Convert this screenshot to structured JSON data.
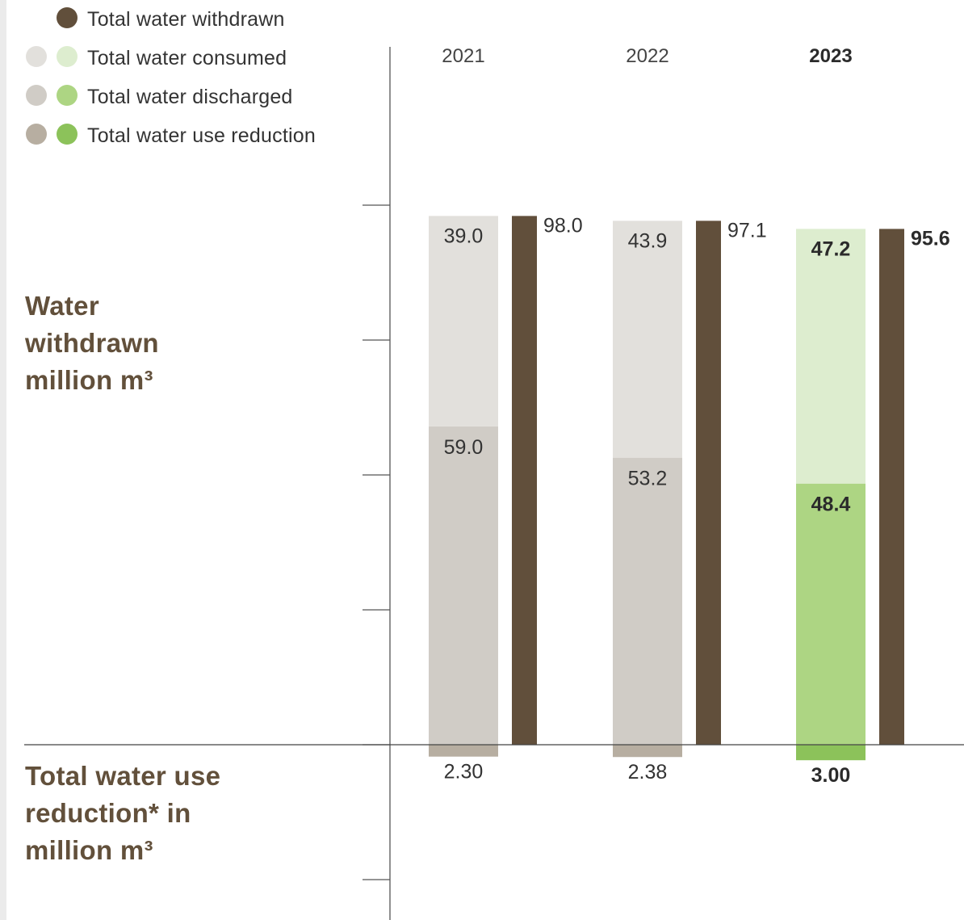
{
  "legend": [
    {
      "label": "Total water withdrawn",
      "colors": [
        "#614f3b"
      ]
    },
    {
      "label": "Total water consumed",
      "colors": [
        "#e2e0dc",
        "#ddedcf"
      ]
    },
    {
      "label": "Total water discharged",
      "colors": [
        "#d0ccc6",
        "#add583"
      ]
    },
    {
      "label": "Total water use reduction",
      "colors": [
        "#b7aea1",
        "#8cc25a"
      ]
    }
  ],
  "titles": {
    "withdrawn": [
      "Water",
      "withdrawn",
      "million m³"
    ],
    "reduction": [
      "Total water use",
      "reduction* in",
      "million m³"
    ]
  },
  "chart_data": {
    "type": "bar",
    "categories": [
      "2021",
      "2022",
      "2023"
    ],
    "highlight_category": "2023",
    "series": [
      {
        "name": "Total water discharged",
        "values": [
          59.0,
          53.2,
          48.4
        ],
        "labels": [
          "59.0",
          "53.2",
          "48.4"
        ],
        "stack": "stacked",
        "colors": [
          "#d0ccc6",
          "#d0ccc6",
          "#add583"
        ]
      },
      {
        "name": "Total water consumed",
        "values": [
          39.0,
          43.9,
          47.2
        ],
        "labels": [
          "39.0",
          "43.9",
          "47.2"
        ],
        "stack": "stacked",
        "colors": [
          "#e2e0dc",
          "#e2e0dc",
          "#ddedcf"
        ]
      },
      {
        "name": "Total water withdrawn",
        "values": [
          98.0,
          97.1,
          95.6
        ],
        "labels": [
          "98.0",
          "97.1",
          "95.6"
        ],
        "colors": [
          "#614f3b",
          "#614f3b",
          "#614f3b"
        ]
      },
      {
        "name": "Total water use reduction",
        "values": [
          2.3,
          2.38,
          3.0
        ],
        "labels": [
          "2.30",
          "2.38",
          "3.00"
        ],
        "direction": "below",
        "colors": [
          "#b7aea1",
          "#b7aea1",
          "#8cc25a"
        ]
      }
    ],
    "ylim": [
      0,
      100
    ],
    "tick_labels_shown": false
  }
}
